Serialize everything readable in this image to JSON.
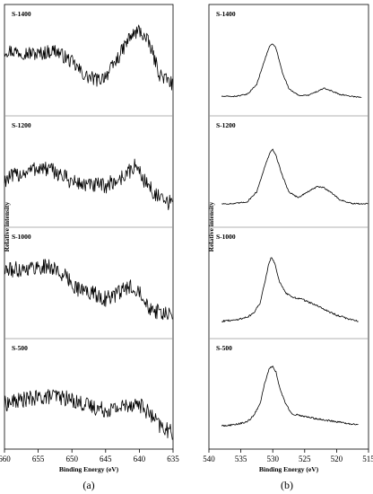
{
  "chart_data": [
    {
      "type": "line",
      "panel_label": "(a)",
      "xlabel": "Binding Energy (eV)",
      "ylabel": "Relative intensity",
      "xlim": [
        660,
        635
      ],
      "x_ticks": [
        "660",
        "655",
        "650",
        "645",
        "640",
        "635"
      ],
      "x_tick_values": [
        660,
        655,
        650,
        645,
        640,
        635
      ],
      "grid": false,
      "x_step": 0.1,
      "series": [
        {
          "name": "S-1400",
          "x": [
            660,
            657.5,
            655,
            652.5,
            650,
            648,
            646,
            644.5,
            643,
            641.5,
            640,
            638.5,
            637,
            635
          ],
          "y": [
            0.6,
            0.58,
            0.56,
            0.6,
            0.48,
            0.34,
            0.3,
            0.38,
            0.54,
            0.72,
            0.8,
            0.66,
            0.36,
            0.26
          ],
          "noise": 0.07
        },
        {
          "name": "S-1200",
          "x": [
            660,
            657.5,
            655,
            652.5,
            650,
            647.5,
            645,
            643,
            641.5,
            640.5,
            639.5,
            638,
            636.5,
            635
          ],
          "y": [
            0.42,
            0.48,
            0.54,
            0.5,
            0.4,
            0.36,
            0.36,
            0.42,
            0.5,
            0.56,
            0.44,
            0.3,
            0.2,
            0.18
          ],
          "noise": 0.08
        },
        {
          "name": "S-1000",
          "x": [
            660,
            657.5,
            655,
            653,
            651,
            649,
            647,
            645,
            643,
            641.5,
            640,
            638.5,
            637,
            635
          ],
          "y": [
            0.62,
            0.64,
            0.66,
            0.66,
            0.56,
            0.44,
            0.4,
            0.34,
            0.4,
            0.46,
            0.44,
            0.26,
            0.2,
            0.16
          ],
          "noise": 0.08
        },
        {
          "name": "S-500",
          "x": [
            660,
            657.5,
            655,
            652.5,
            650,
            647.5,
            645,
            643,
            641.5,
            640,
            638.5,
            637,
            635
          ],
          "y": [
            0.4,
            0.44,
            0.46,
            0.48,
            0.44,
            0.38,
            0.34,
            0.36,
            0.4,
            0.4,
            0.3,
            0.18,
            0.1
          ],
          "noise": 0.08
        }
      ]
    },
    {
      "type": "line",
      "panel_label": "(b)",
      "xlabel": "Binding Energy (eV)",
      "ylabel": "Relative intensity",
      "xlim": [
        540,
        515
      ],
      "x_ticks": [
        "540",
        "535",
        "530",
        "525",
        "520",
        "515"
      ],
      "x_tick_values": [
        540,
        535,
        530,
        525,
        520,
        515
      ],
      "grid": false,
      "x_step": 0.1,
      "series": [
        {
          "name": "S-1400",
          "x": [
            538,
            536,
            534,
            532.5,
            531.5,
            530.5,
            530,
            529.5,
            528.5,
            527.5,
            526,
            524.5,
            523,
            522,
            521,
            519.5,
            517.5,
            516
          ],
          "y": [
            0.14,
            0.14,
            0.16,
            0.26,
            0.46,
            0.64,
            0.66,
            0.62,
            0.38,
            0.22,
            0.15,
            0.15,
            0.19,
            0.22,
            0.2,
            0.16,
            0.14,
            0.13
          ],
          "noise": 0.006
        },
        {
          "name": "S-1200",
          "x": [
            538,
            536,
            534,
            532.5,
            531.5,
            530.5,
            530,
            529.5,
            528.5,
            527.5,
            526,
            524.5,
            523,
            522,
            521,
            519.5,
            517.5,
            515
          ],
          "y": [
            0.18,
            0.18,
            0.2,
            0.3,
            0.5,
            0.68,
            0.72,
            0.66,
            0.46,
            0.3,
            0.24,
            0.3,
            0.35,
            0.34,
            0.3,
            0.22,
            0.18,
            0.18
          ],
          "noise": 0.007
        },
        {
          "name": "S-1000",
          "x": [
            538,
            536,
            534,
            533,
            532,
            531.2,
            530.6,
            530.2,
            529.6,
            529,
            528,
            527,
            525.5,
            524,
            522,
            520,
            518,
            516.5
          ],
          "y": [
            0.12,
            0.13,
            0.16,
            0.2,
            0.3,
            0.52,
            0.7,
            0.76,
            0.68,
            0.52,
            0.4,
            0.36,
            0.34,
            0.3,
            0.24,
            0.18,
            0.14,
            0.12
          ],
          "noise": 0.009
        },
        {
          "name": "S-500",
          "x": [
            538,
            536,
            534,
            533,
            532,
            531.2,
            530.5,
            530,
            529.5,
            529,
            528,
            527,
            525.5,
            524,
            522,
            520,
            518,
            516.5
          ],
          "y": [
            0.18,
            0.19,
            0.22,
            0.28,
            0.4,
            0.62,
            0.76,
            0.78,
            0.72,
            0.58,
            0.4,
            0.3,
            0.28,
            0.26,
            0.24,
            0.22,
            0.2,
            0.19
          ],
          "noise": 0.009
        }
      ]
    }
  ]
}
